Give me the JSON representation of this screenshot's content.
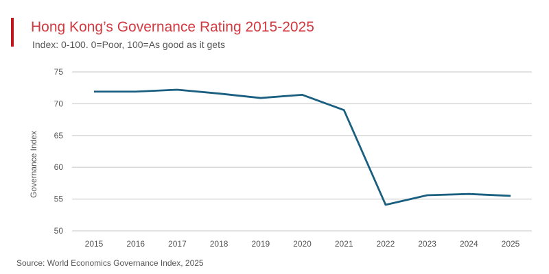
{
  "header": {
    "title": "Hong Kong’s Governance Rating 2015-2025",
    "subtitle": "Index: 0-100. 0=Poor, 100=As good as it gets",
    "accent_color": "#c0171d"
  },
  "footer": {
    "source": "Source: World Economics Governance Index, 2025"
  },
  "chart_data": {
    "type": "line",
    "title": "Hong Kong’s Governance Rating 2015-2025",
    "xlabel": "",
    "ylabel": "Governance Index",
    "x": [
      "2015",
      "2016",
      "2017",
      "2018",
      "2019",
      "2020",
      "2021",
      "2022",
      "2023",
      "2024",
      "2025"
    ],
    "series": [
      {
        "values": [
          71.9,
          71.9,
          72.2,
          71.6,
          70.9,
          71.4,
          69.0,
          54.1,
          55.6,
          55.8,
          55.5
        ],
        "color": "#1a5f80"
      }
    ],
    "ylim": [
      50,
      75
    ],
    "yticks": [
      50,
      55,
      60,
      65,
      70,
      75
    ],
    "grid": true,
    "legend": "none"
  }
}
